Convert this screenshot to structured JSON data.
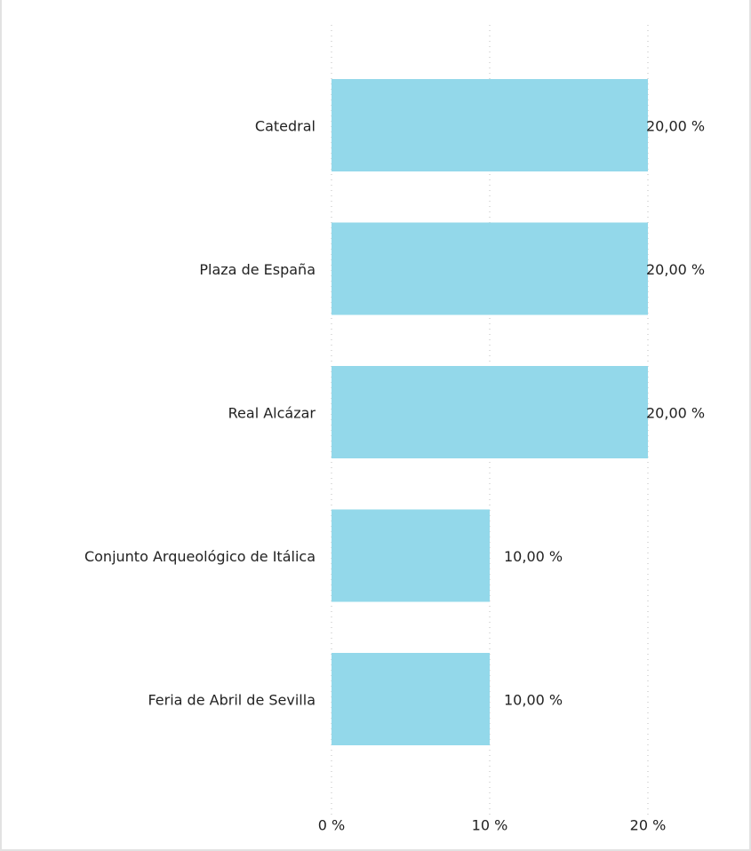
{
  "chart_data": {
    "type": "barh",
    "categories": [
      "Catedral",
      "Plaza de España",
      "Real Alcázar",
      "Conjunto Arqueológico de Itálica",
      "Feria de Abril de Sevilla"
    ],
    "values": [
      20,
      20,
      20,
      10,
      10
    ],
    "value_labels": [
      "20,00 %",
      "20,00 %",
      "20,00 %",
      "10,00 %",
      "10,00 %"
    ],
    "color": "#93d8ea",
    "xlim": [
      0,
      20
    ],
    "xticks": [
      {
        "value": 0,
        "label": "0 %"
      },
      {
        "value": 10,
        "label": "10 %"
      },
      {
        "value": 20,
        "label": "20 %"
      }
    ],
    "grid": true
  }
}
